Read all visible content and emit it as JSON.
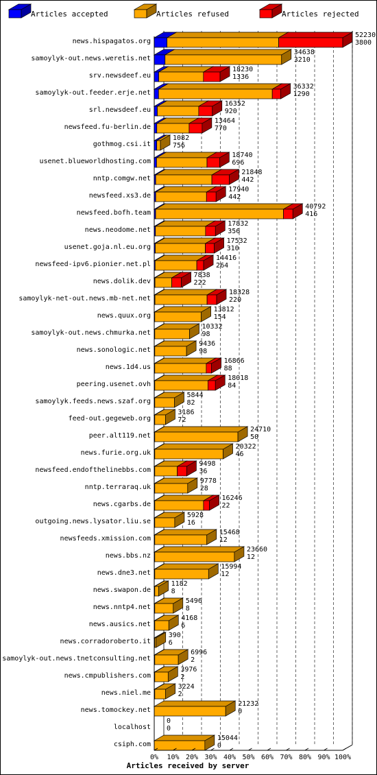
{
  "chart_data": {
    "type": "bar",
    "orientation": "horizontal",
    "stacked": true,
    "legend": [
      {
        "label": "Articles accepted",
        "color": "#0000ff"
      },
      {
        "label": "Articles refused",
        "color": "#ffaa00"
      },
      {
        "label": "Articles rejected",
        "color": "#ff0000"
      }
    ],
    "xlabel": "Articles received by server",
    "xticks": [
      "0%",
      "10%",
      "20%",
      "30%",
      "40%",
      "50%",
      "60%",
      "70%",
      "80%",
      "90%",
      "100%"
    ],
    "xlim": [
      0,
      100
    ],
    "max_total": 56030,
    "servers": [
      {
        "name": "news.hispagatos.org",
        "accepted": 3800,
        "refused": 33200,
        "rejected": 19030,
        "top": "52230",
        "bottom": "3800"
      },
      {
        "name": "samoylyk-out.news.weretis.net",
        "accepted": 3210,
        "refused": 34638,
        "rejected": 0,
        "top": "34638",
        "bottom": "3210"
      },
      {
        "name": "srv.newsdeef.eu",
        "accepted": 1336,
        "refused": 13300,
        "rejected": 4930,
        "top": "18230",
        "bottom": "1336"
      },
      {
        "name": "samoylyk-out.feeder.erje.net",
        "accepted": 1290,
        "refused": 33800,
        "rejected": 2532,
        "top": "36332",
        "bottom": "1290"
      },
      {
        "name": "srl.newsdeef.eu",
        "accepted": 920,
        "refused": 12300,
        "rejected": 4052,
        "top": "16352",
        "bottom": "920"
      },
      {
        "name": "newsfeed.fu-berlin.de",
        "accepted": 770,
        "refused": 9600,
        "rejected": 3864,
        "top": "13464",
        "bottom": "770"
      },
      {
        "name": "gothmog.csi.it",
        "accepted": 756,
        "refused": 1082,
        "rejected": 0,
        "top": "1082",
        "bottom": "756"
      },
      {
        "name": "usenet.blueworldhosting.com",
        "accepted": 696,
        "refused": 15000,
        "rejected": 3740,
        "top": "18740",
        "bottom": "696"
      },
      {
        "name": "nntp.comgw.net",
        "accepted": 442,
        "refused": 16700,
        "rejected": 5148,
        "top": "21848",
        "bottom": "442"
      },
      {
        "name": "newsfeed.xs3.de",
        "accepted": 442,
        "refused": 15100,
        "rejected": 2840,
        "top": "17940",
        "bottom": "442"
      },
      {
        "name": "newsfeed.bofh.team",
        "accepted": 416,
        "refused": 38000,
        "rejected": 2792,
        "top": "40792",
        "bottom": "416"
      },
      {
        "name": "news.neodome.net",
        "accepted": 356,
        "refused": 14900,
        "rejected": 2932,
        "top": "17832",
        "bottom": "356"
      },
      {
        "name": "usenet.goja.nl.eu.org",
        "accepted": 310,
        "refused": 14900,
        "rejected": 2632,
        "top": "17532",
        "bottom": "310"
      },
      {
        "name": "newsfeed-ipv6.pionier.net.pl",
        "accepted": 264,
        "refused": 12400,
        "rejected": 2016,
        "top": "14416",
        "bottom": "264"
      },
      {
        "name": "news.dolik.dev",
        "accepted": 222,
        "refused": 5000,
        "rejected": 2838,
        "top": "7838",
        "bottom": "222"
      },
      {
        "name": "samoylyk-net-out.news.mb-net.net",
        "accepted": 220,
        "refused": 15500,
        "rejected": 2828,
        "top": "18328",
        "bottom": "220"
      },
      {
        "name": "news.quux.org",
        "accepted": 154,
        "refused": 13812,
        "rejected": 0,
        "top": "13812",
        "bottom": "154"
      },
      {
        "name": "samoylyk-out.news.chmurka.net",
        "accepted": 98,
        "refused": 10332,
        "rejected": 0,
        "top": "10332",
        "bottom": "98"
      },
      {
        "name": "news.sonologic.net",
        "accepted": 98,
        "refused": 9436,
        "rejected": 0,
        "top": "9436",
        "bottom": "98"
      },
      {
        "name": "news.1d4.us",
        "accepted": 88,
        "refused": 15300,
        "rejected": 1566,
        "top": "16866",
        "bottom": "88"
      },
      {
        "name": "peering.usenet.ovh",
        "accepted": 84,
        "refused": 15800,
        "rejected": 2218,
        "top": "18018",
        "bottom": "84"
      },
      {
        "name": "samoylyk.feeds.news.szaf.org",
        "accepted": 82,
        "refused": 5844,
        "rejected": 0,
        "top": "5844",
        "bottom": "82"
      },
      {
        "name": "feed-out.gegeweb.org",
        "accepted": 72,
        "refused": 3186,
        "rejected": 0,
        "top": "3186",
        "bottom": "72"
      },
      {
        "name": "peer.alt119.net",
        "accepted": 50,
        "refused": 24710,
        "rejected": 0,
        "top": "24710",
        "bottom": "50"
      },
      {
        "name": "news.furie.org.uk",
        "accepted": 46,
        "refused": 20322,
        "rejected": 0,
        "top": "20322",
        "bottom": "46"
      },
      {
        "name": "newsfeed.endofthelinebbs.com",
        "accepted": 36,
        "refused": 6700,
        "rejected": 2798,
        "top": "9498",
        "bottom": "36"
      },
      {
        "name": "nntp.terraraq.uk",
        "accepted": 28,
        "refused": 9778,
        "rejected": 0,
        "top": "9778",
        "bottom": "28"
      },
      {
        "name": "news.cgarbs.de",
        "accepted": 22,
        "refused": 14500,
        "rejected": 1746,
        "top": "16246",
        "bottom": "22"
      },
      {
        "name": "outgoing.news.lysator.liu.se",
        "accepted": 16,
        "refused": 5928,
        "rejected": 0,
        "top": "5928",
        "bottom": "16"
      },
      {
        "name": "newsfeeds.xmission.com",
        "accepted": 12,
        "refused": 15468,
        "rejected": 0,
        "top": "15468",
        "bottom": "12"
      },
      {
        "name": "news.bbs.nz",
        "accepted": 12,
        "refused": 23660,
        "rejected": 0,
        "top": "23660",
        "bottom": "12"
      },
      {
        "name": "news.dne3.net",
        "accepted": 12,
        "refused": 15994,
        "rejected": 0,
        "top": "15994",
        "bottom": "12"
      },
      {
        "name": "news.swapon.de",
        "accepted": 8,
        "refused": 1182,
        "rejected": 0,
        "top": "1182",
        "bottom": "8"
      },
      {
        "name": "news.nntp4.net",
        "accepted": 8,
        "refused": 5496,
        "rejected": 0,
        "top": "5496",
        "bottom": "8"
      },
      {
        "name": "news.ausics.net",
        "accepted": 6,
        "refused": 4168,
        "rejected": 0,
        "top": "4168",
        "bottom": "6"
      },
      {
        "name": "news.corradoroberto.it",
        "accepted": 6,
        "refused": 390,
        "rejected": 0,
        "top": "390",
        "bottom": "6"
      },
      {
        "name": "samoylyk-out.news.tnetconsulting.net",
        "accepted": 2,
        "refused": 6996,
        "rejected": 0,
        "top": "6996",
        "bottom": "2"
      },
      {
        "name": "news.cmpublishers.com",
        "accepted": 2,
        "refused": 3976,
        "rejected": 0,
        "top": "3976",
        "bottom": "2"
      },
      {
        "name": "news.niel.me",
        "accepted": 2,
        "refused": 3224,
        "rejected": 0,
        "top": "3224",
        "bottom": "2"
      },
      {
        "name": "news.tomockey.net",
        "accepted": 0,
        "refused": 21232,
        "rejected": 0,
        "top": "21232",
        "bottom": "0"
      },
      {
        "name": "localhost",
        "accepted": 0,
        "refused": 0,
        "rejected": 0,
        "top": "0",
        "bottom": "0"
      },
      {
        "name": "csiph.com",
        "accepted": 0,
        "refused": 15044,
        "rejected": 0,
        "top": "15044",
        "bottom": "0"
      }
    ]
  }
}
